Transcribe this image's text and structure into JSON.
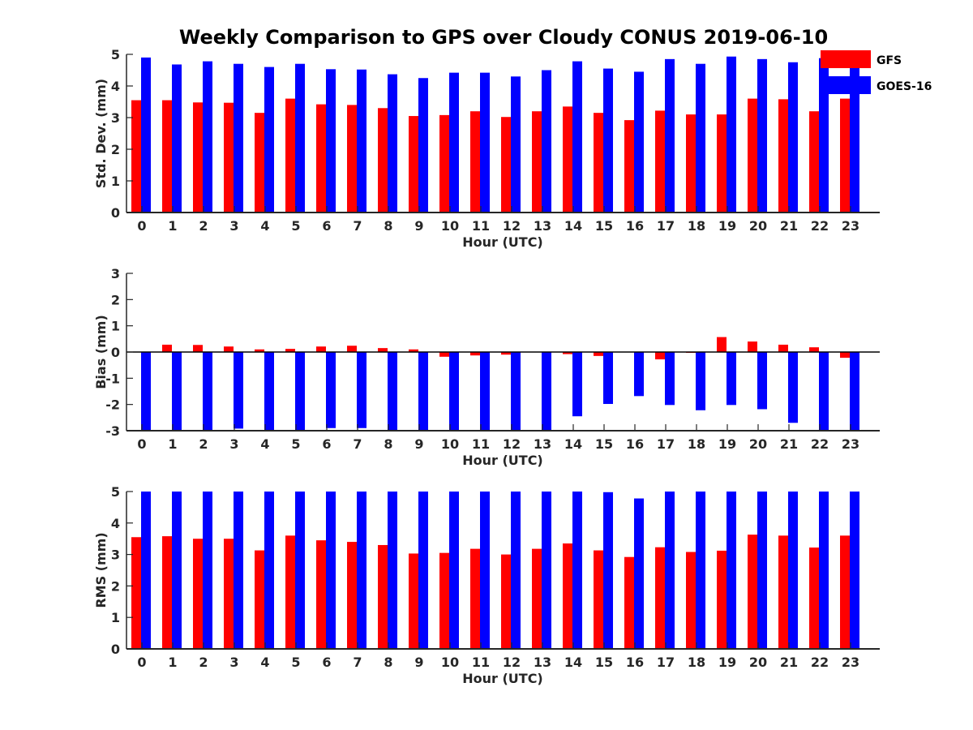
{
  "title": "Weekly Comparison to GPS over Cloudy CONUS 2019-06-10",
  "legend": {
    "placement": "top-right",
    "entries": [
      {
        "name": "GFS",
        "color": "#ff0000"
      },
      {
        "name": "GOES-16",
        "color": "#0000ff"
      }
    ]
  },
  "chart_data": [
    {
      "type": "bar",
      "xlabel": "Hour (UTC)",
      "ylabel": "Std. Dev. (mm)",
      "ylim": [
        0,
        5
      ],
      "yticks": [
        "0",
        "1",
        "2",
        "3",
        "4",
        "5"
      ],
      "categories": [
        "0",
        "1",
        "2",
        "3",
        "4",
        "5",
        "6",
        "7",
        "8",
        "9",
        "10",
        "11",
        "12",
        "13",
        "14",
        "15",
        "16",
        "17",
        "18",
        "19",
        "20",
        "21",
        "22",
        "23"
      ],
      "series": [
        {
          "name": "GFS",
          "color": "#ff0000",
          "values": [
            3.55,
            3.55,
            3.48,
            3.47,
            3.15,
            3.6,
            3.42,
            3.4,
            3.3,
            3.05,
            3.08,
            3.2,
            3.02,
            3.2,
            3.35,
            3.15,
            2.92,
            3.22,
            3.1,
            3.1,
            3.6,
            3.58,
            3.2,
            3.6
          ]
        },
        {
          "name": "GOES-16",
          "color": "#0000ff",
          "values": [
            4.9,
            4.68,
            4.78,
            4.7,
            4.6,
            4.7,
            4.53,
            4.52,
            4.37,
            4.25,
            4.42,
            4.42,
            4.3,
            4.5,
            4.78,
            4.55,
            4.45,
            4.85,
            4.7,
            4.93,
            4.85,
            4.75,
            4.88,
            4.6
          ]
        }
      ]
    },
    {
      "type": "bar",
      "xlabel": "Hour (UTC)",
      "ylabel": "Bias (mm)",
      "ylim": [
        -3,
        3
      ],
      "yticks": [
        "-3",
        "-2",
        "-1",
        "0",
        "1",
        "2",
        "3"
      ],
      "categories": [
        "0",
        "1",
        "2",
        "3",
        "4",
        "5",
        "6",
        "7",
        "8",
        "9",
        "10",
        "11",
        "12",
        "13",
        "14",
        "15",
        "16",
        "17",
        "18",
        "19",
        "20",
        "21",
        "22",
        "23"
      ],
      "series": [
        {
          "name": "GFS",
          "color": "#ff0000",
          "values": [
            0.0,
            0.28,
            0.27,
            0.21,
            0.1,
            0.12,
            0.21,
            0.24,
            0.15,
            0.1,
            -0.18,
            -0.13,
            -0.1,
            0.0,
            -0.08,
            -0.15,
            0.0,
            -0.28,
            -0.03,
            0.57,
            0.4,
            0.28,
            0.18,
            -0.22
          ]
        },
        {
          "name": "GOES-16",
          "color": "#0000ff",
          "values": [
            -3.0,
            -3.0,
            -3.0,
            -2.92,
            -3.0,
            -3.0,
            -2.9,
            -2.9,
            -3.0,
            -3.0,
            -3.0,
            -3.0,
            -3.0,
            -3.0,
            -2.45,
            -1.98,
            -1.68,
            -2.02,
            -2.22,
            -2.02,
            -2.18,
            -2.7,
            -3.0,
            -3.0
          ]
        }
      ]
    },
    {
      "type": "bar",
      "xlabel": "Hour (UTC)",
      "ylabel": "RMS (mm)",
      "ylim": [
        0,
        5
      ],
      "yticks": [
        "0",
        "1",
        "2",
        "3",
        "4",
        "5"
      ],
      "categories": [
        "0",
        "1",
        "2",
        "3",
        "4",
        "5",
        "6",
        "7",
        "8",
        "9",
        "10",
        "11",
        "12",
        "13",
        "14",
        "15",
        "16",
        "17",
        "18",
        "19",
        "20",
        "21",
        "22",
        "23"
      ],
      "series": [
        {
          "name": "GFS",
          "color": "#ff0000",
          "values": [
            3.55,
            3.58,
            3.5,
            3.5,
            3.13,
            3.6,
            3.45,
            3.4,
            3.3,
            3.03,
            3.05,
            3.18,
            3.0,
            3.18,
            3.35,
            3.13,
            2.92,
            3.23,
            3.08,
            3.12,
            3.63,
            3.6,
            3.22,
            3.6
          ]
        },
        {
          "name": "GOES-16",
          "color": "#0000ff",
          "values": [
            5.0,
            5.0,
            5.0,
            5.0,
            5.0,
            5.0,
            5.0,
            5.0,
            5.0,
            5.0,
            5.0,
            5.0,
            5.0,
            5.0,
            5.0,
            4.98,
            4.78,
            5.0,
            5.0,
            5.0,
            5.0,
            5.0,
            5.0,
            5.0
          ]
        }
      ]
    }
  ]
}
